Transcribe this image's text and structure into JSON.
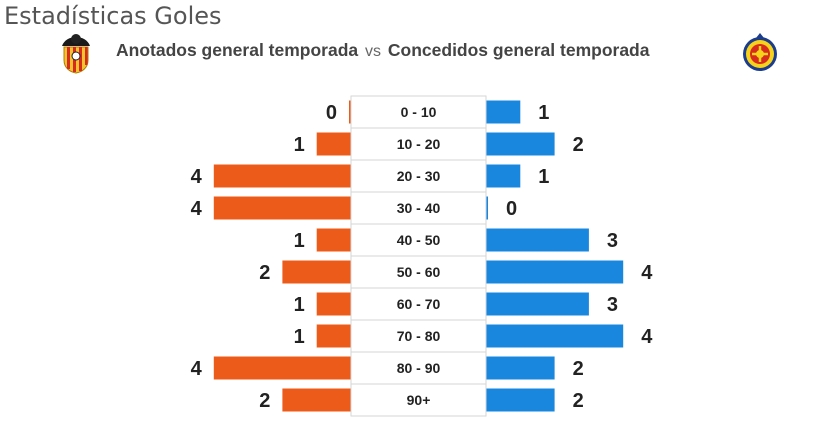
{
  "page": {
    "title": "Estadísticas Goles"
  },
  "header": {
    "home_label": "Anotados general temporada",
    "vs": "vs",
    "away_label": "Concedidos general temporada"
  },
  "icons": {
    "home_crest": "valencia-crest-icon",
    "away_crest": "villarreal-crest-icon"
  },
  "colors": {
    "home_bar": "#ec5b19",
    "away_bar": "#1a87df",
    "label_box_border": "#d6d6d6"
  },
  "chart_data": {
    "type": "bar",
    "orientation": "horizontal-butterfly",
    "categories": [
      "0 - 10",
      "10 - 20",
      "20 - 30",
      "30 - 40",
      "40 - 50",
      "50 - 60",
      "60 - 70",
      "70 - 80",
      "80 - 90",
      "90+"
    ],
    "series": [
      {
        "name": "Anotados general temporada",
        "values": [
          0,
          1,
          4,
          4,
          1,
          2,
          1,
          1,
          4,
          2
        ]
      },
      {
        "name": "Concedidos general temporada",
        "values": [
          1,
          2,
          1,
          0,
          3,
          4,
          3,
          4,
          2,
          2
        ]
      }
    ],
    "xlim": [
      0,
      4
    ],
    "grid": false,
    "legend": "none"
  }
}
